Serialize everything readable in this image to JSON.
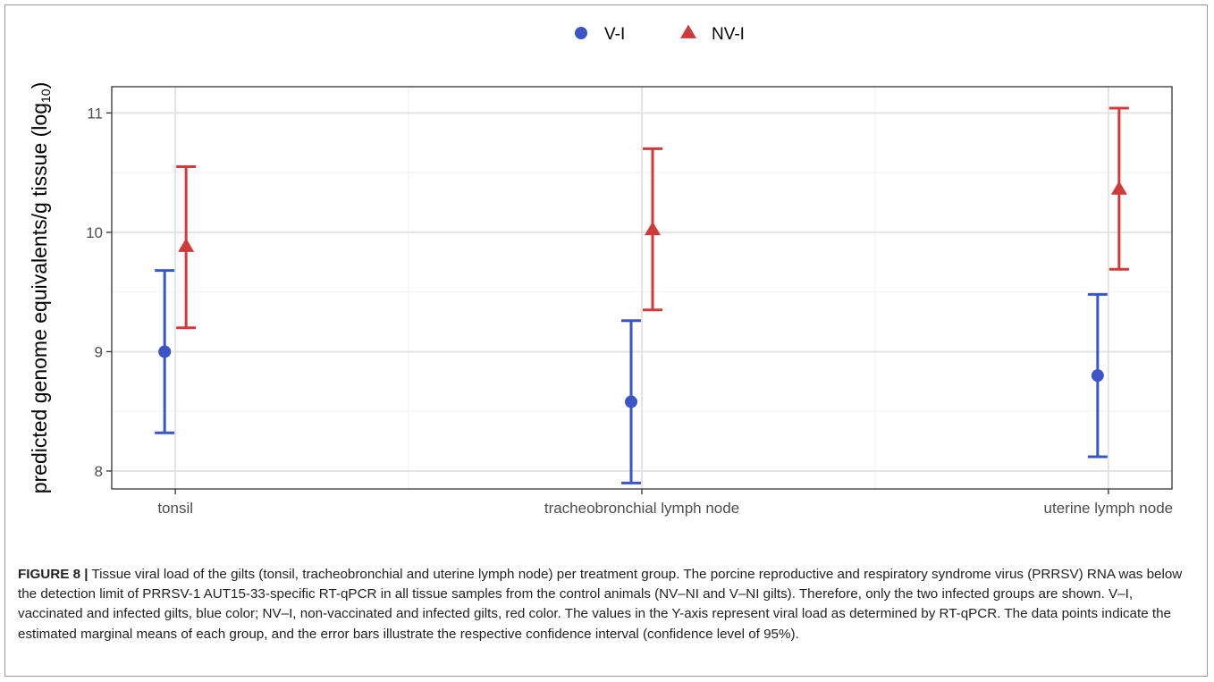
{
  "chart_data": {
    "type": "scatter",
    "ylabel_main": "predicted genome equivalents/g tissue (log",
    "ylabel_sub": "10",
    "ylabel_close": ")",
    "ylim": [
      7.85,
      11.22
    ],
    "yticks": [
      8,
      9,
      10,
      11
    ],
    "categories": [
      "tonsil",
      "tracheobronchial lymph node",
      "uterine lymph node"
    ],
    "legend_position": "top",
    "grid": true,
    "series": [
      {
        "name": "V-I",
        "marker": "circle",
        "color": "#3b55c6",
        "values": [
          9.0,
          8.58,
          8.8
        ],
        "lower": [
          8.32,
          7.9,
          8.12
        ],
        "upper": [
          9.68,
          9.26,
          9.48
        ]
      },
      {
        "name": "NV-I",
        "marker": "triangle",
        "color": "#d03a3a",
        "values": [
          9.88,
          10.02,
          10.36
        ],
        "lower": [
          9.2,
          9.35,
          9.69
        ],
        "upper": [
          10.55,
          10.7,
          11.04
        ]
      }
    ]
  },
  "caption": {
    "label": "FIGURE 8 |",
    "text": " Tissue viral load of the gilts (tonsil, tracheobronchial and uterine lymph node) per treatment group. The porcine reproductive and respiratory syndrome virus (PRRSV) RNA was below the detection limit of PRRSV-1 AUT15-33-specific RT-qPCR in all tissue samples from the control animals (NV–NI and V–NI gilts). Therefore, only the two infected groups are shown. V–I, vaccinated and infected gilts, blue color; NV–I, non-vaccinated and infected gilts, red color. The values in the Y-axis represent viral load as determined by RT-qPCR. The data points indicate the estimated marginal means of each group, and the error bars illustrate the respective confidence interval (confidence level of 95%)."
  }
}
